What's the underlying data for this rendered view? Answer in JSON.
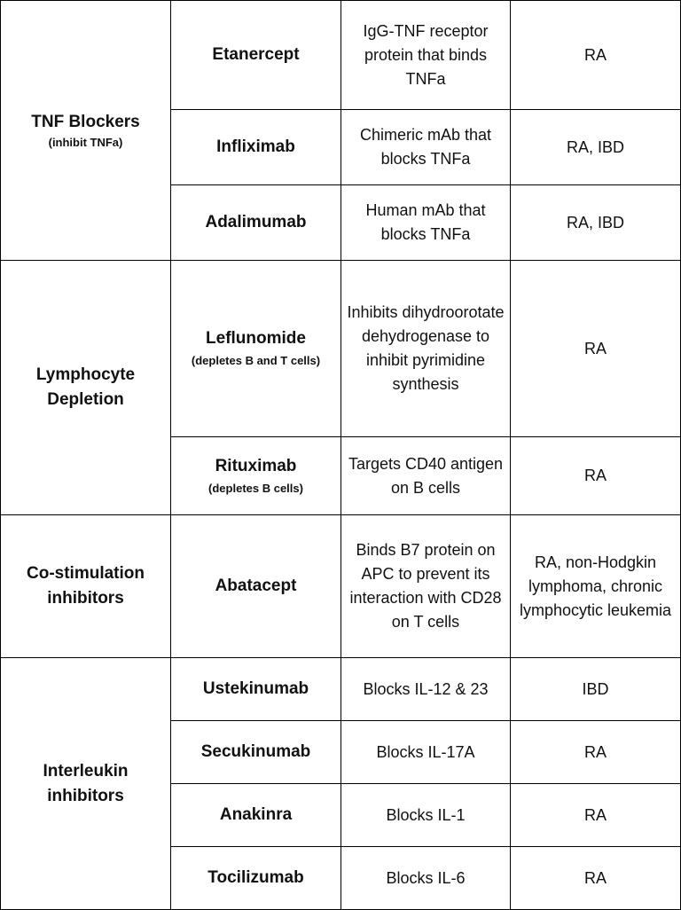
{
  "colors": {
    "tnf": "#ee0000",
    "lymphocyte": "#f5b800",
    "costimulation": "#8ccc4e",
    "interleukin": "#1670c4",
    "border": "#000000",
    "text": "#111111"
  },
  "groups": [
    {
      "category": "TNF Blockers",
      "category_note": "(inhibit TNFa)",
      "rows": [
        {
          "drug": "Etanercept",
          "note": "",
          "mechanism": "IgG-TNF receptor protein that binds TNFa",
          "use": "RA"
        },
        {
          "drug": "Infliximab",
          "note": "",
          "mechanism": "Chimeric mAb that blocks TNFa",
          "use": "RA, IBD"
        },
        {
          "drug": "Adalimumab",
          "note": "",
          "mechanism": "Human mAb that blocks TNFa",
          "use": "RA, IBD"
        }
      ]
    },
    {
      "category": "Lymphocyte Depletion",
      "category_note": "",
      "rows": [
        {
          "drug": "Leflunomide",
          "note": "(depletes B and T cells)",
          "mechanism": "Inhibits dihydroorotate dehydrogenase to inhibit pyrimidine synthesis",
          "use": "RA"
        },
        {
          "drug": "Rituximab",
          "note": "(depletes B cells)",
          "mechanism": "Targets CD40 antigen on B cells",
          "use": "RA"
        }
      ]
    },
    {
      "category": "Co-stimulation inhibitors",
      "category_note": "",
      "rows": [
        {
          "drug": "Abatacept",
          "note": "",
          "mechanism": "Binds B7 protein on APC to prevent its interaction with CD28 on T cells",
          "use": "RA, non-Hodgkin lymphoma, chronic lymphocytic leukemia"
        }
      ]
    },
    {
      "category": "Interleukin inhibitors",
      "category_note": "",
      "rows": [
        {
          "drug": "Ustekinumab",
          "note": "",
          "mechanism": "Blocks IL-12 & 23",
          "use": "IBD"
        },
        {
          "drug": "Secukinumab",
          "note": "",
          "mechanism": "Blocks IL-17A",
          "use": "RA"
        },
        {
          "drug": "Anakinra",
          "note": "",
          "mechanism": "Blocks IL-1",
          "use": "RA"
        },
        {
          "drug": "Tocilizumab",
          "note": "",
          "mechanism": "Blocks IL-6",
          "use": "RA"
        }
      ]
    }
  ]
}
